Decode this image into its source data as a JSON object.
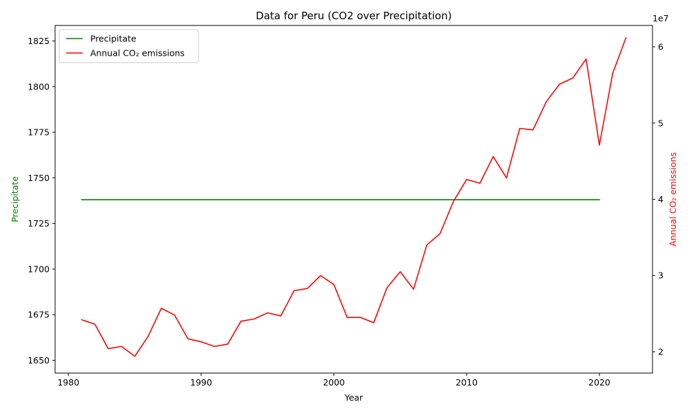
{
  "chart_data": {
    "type": "line",
    "title": "Data for Peru (CO2 over Precipitation)",
    "xlabel": "Year",
    "x_ticks": [
      1980,
      1990,
      2000,
      2010,
      2020
    ],
    "xlim": [
      1979.0,
      2024.0
    ],
    "left_axis": {
      "label": "Precipitate",
      "color": "#008000",
      "ticks": [
        1650,
        1675,
        1700,
        1725,
        1750,
        1775,
        1800,
        1825
      ],
      "ylim": [
        1643.0,
        1833.5
      ]
    },
    "right_axis": {
      "label": "Annual CO₂ emissions",
      "color": "#ff0000",
      "ticks": [
        20000000,
        30000000,
        40000000,
        50000000,
        60000000
      ],
      "tick_labels": [
        "2",
        "3",
        "4",
        "5",
        "6"
      ],
      "offset_label": "1e7",
      "ylim": [
        17200000.0,
        62800000.0
      ]
    },
    "legend_position": "top-left",
    "series": [
      {
        "name": "Precipitate",
        "axis": "left",
        "color": "#008000",
        "x": [
          1981,
          1982,
          1983,
          1984,
          1985,
          1986,
          1987,
          1988,
          1989,
          1990,
          1991,
          1992,
          1993,
          1994,
          1995,
          1996,
          1997,
          1998,
          1999,
          2000,
          2001,
          2002,
          2003,
          2004,
          2005,
          2006,
          2007,
          2008,
          2009,
          2010,
          2011,
          2012,
          2013,
          2014,
          2015,
          2016,
          2017,
          2018,
          2019,
          2020
        ],
        "y": [
          1738,
          1738,
          1738,
          1738,
          1738,
          1738,
          1738,
          1738,
          1738,
          1738,
          1738,
          1738,
          1738,
          1738,
          1738,
          1738,
          1738,
          1738,
          1738,
          1738,
          1738,
          1738,
          1738,
          1738,
          1738,
          1738,
          1738,
          1738,
          1738,
          1738,
          1738,
          1738,
          1738,
          1738,
          1738,
          1738,
          1738,
          1738,
          1738,
          1738
        ]
      },
      {
        "name": "Annual CO₂ emissions",
        "axis": "right",
        "color": "#ff0000",
        "x": [
          1981,
          1982,
          1983,
          1984,
          1985,
          1986,
          1987,
          1988,
          1989,
          1990,
          1991,
          1992,
          1993,
          1994,
          1995,
          1996,
          1997,
          1998,
          1999,
          2000,
          2001,
          2002,
          2003,
          2004,
          2005,
          2006,
          2007,
          2008,
          2009,
          2010,
          2011,
          2012,
          2013,
          2014,
          2015,
          2016,
          2017,
          2018,
          2019,
          2020,
          2021,
          2022
        ],
        "y": [
          24200000,
          23600000,
          20400000,
          20700000,
          19400000,
          22000000,
          25700000,
          24800000,
          21700000,
          21300000,
          20700000,
          21000000,
          24000000,
          24300000,
          25100000,
          24700000,
          28000000,
          28300000,
          30000000,
          28800000,
          24500000,
          24500000,
          23800000,
          28400000,
          30500000,
          28200000,
          34000000,
          35500000,
          39700000,
          42600000,
          42100000,
          45600000,
          42800000,
          49300000,
          49100000,
          52800000,
          55100000,
          55900000,
          58400000,
          47100000,
          56500000,
          61200000
        ]
      }
    ]
  }
}
